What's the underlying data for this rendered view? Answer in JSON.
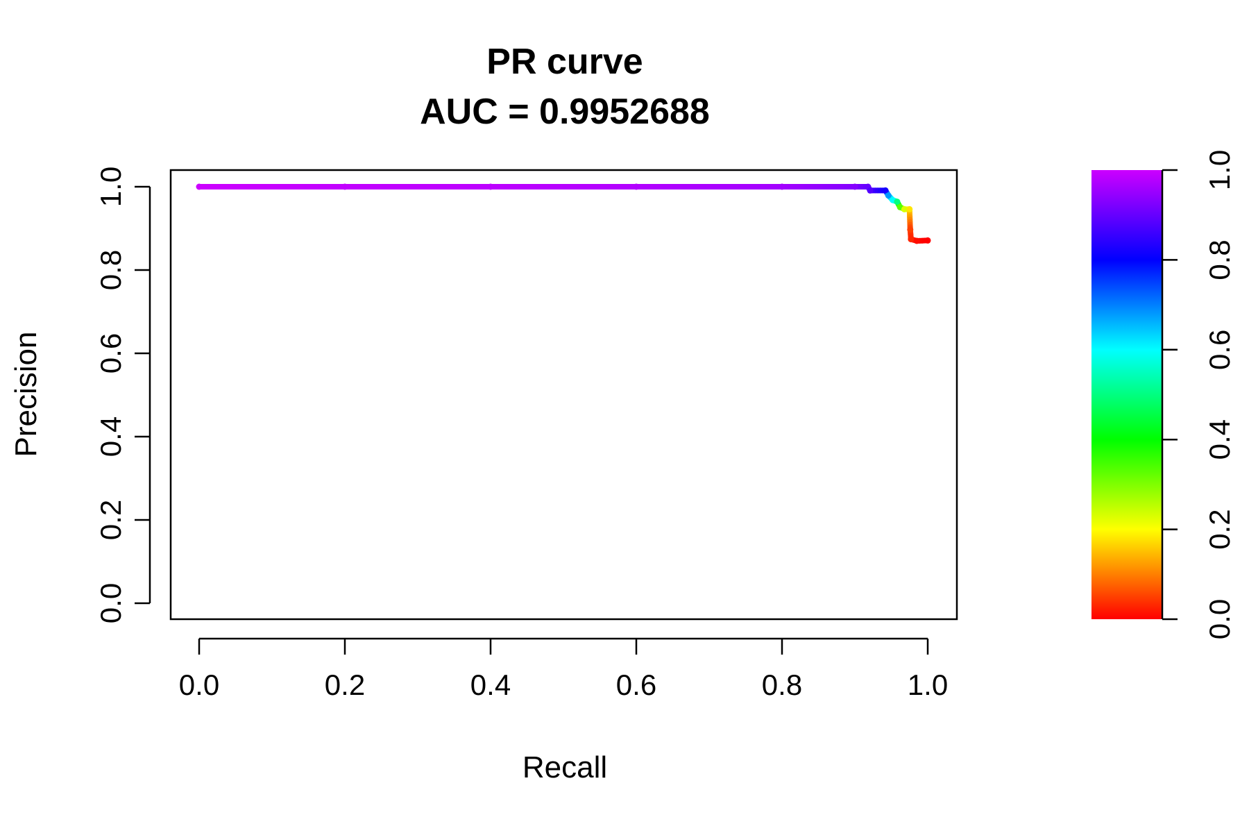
{
  "chart_data": {
    "type": "line",
    "title": "PR curve",
    "subtitle": "AUC = 0.9952688",
    "xlabel": "Recall",
    "ylabel": "Precision",
    "xlim": [
      0,
      1
    ],
    "ylim": [
      0,
      1
    ],
    "x_ticks": [
      "0.0",
      "0.2",
      "0.4",
      "0.6",
      "0.8",
      "1.0"
    ],
    "y_ticks": [
      "0.0",
      "0.2",
      "0.4",
      "0.6",
      "0.8",
      "1.0"
    ],
    "grid": false,
    "series": [
      {
        "points": [
          {
            "x": 0.0,
            "y": 1.0,
            "t": 1.0
          },
          {
            "x": 0.2,
            "y": 1.0,
            "t": 0.99
          },
          {
            "x": 0.4,
            "y": 1.0,
            "t": 0.985
          },
          {
            "x": 0.6,
            "y": 1.0,
            "t": 0.975
          },
          {
            "x": 0.8,
            "y": 1.0,
            "t": 0.96
          },
          {
            "x": 0.9,
            "y": 1.0,
            "t": 0.93
          },
          {
            "x": 0.918,
            "y": 1.0,
            "t": 0.9
          },
          {
            "x": 0.921,
            "y": 0.991,
            "t": 0.88
          },
          {
            "x": 0.942,
            "y": 0.991,
            "t": 0.82
          },
          {
            "x": 0.946,
            "y": 0.979,
            "t": 0.68
          },
          {
            "x": 0.952,
            "y": 0.968,
            "t": 0.6
          },
          {
            "x": 0.958,
            "y": 0.964,
            "t": 0.5
          },
          {
            "x": 0.962,
            "y": 0.951,
            "t": 0.33
          },
          {
            "x": 0.968,
            "y": 0.946,
            "t": 0.23
          },
          {
            "x": 0.975,
            "y": 0.946,
            "t": 0.18
          },
          {
            "x": 0.976,
            "y": 0.897,
            "t": 0.05
          },
          {
            "x": 0.977,
            "y": 0.874,
            "t": 0.03
          },
          {
            "x": 0.985,
            "y": 0.87,
            "t": 0.01
          },
          {
            "x": 1.0,
            "y": 0.871,
            "t": 0.0
          }
        ]
      }
    ],
    "colorbar": {
      "range": [
        0,
        1
      ],
      "ticks": [
        "0.0",
        "0.2",
        "0.4",
        "0.6",
        "0.8",
        "1.0"
      ],
      "colors": [
        {
          "at": 0.0,
          "color": "#ff0000"
        },
        {
          "at": 0.2,
          "color": "#ffff00"
        },
        {
          "at": 0.4,
          "color": "#00ff00"
        },
        {
          "at": 0.6,
          "color": "#00ffff"
        },
        {
          "at": 0.8,
          "color": "#0000ff"
        },
        {
          "at": 1.0,
          "color": "#cc00ff"
        }
      ]
    }
  }
}
